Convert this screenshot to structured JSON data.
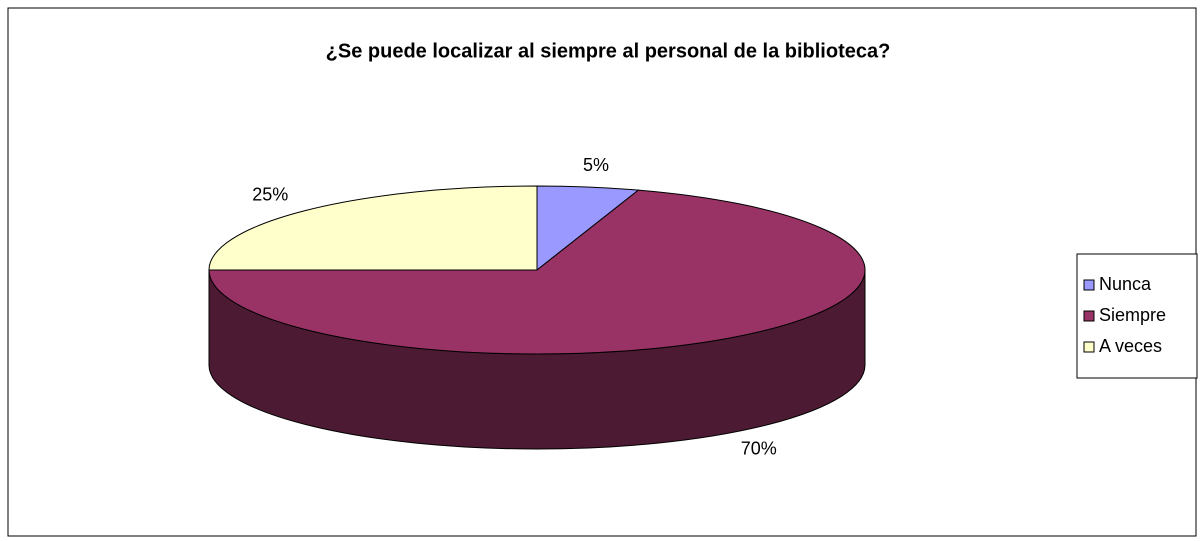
{
  "chart_data": {
    "type": "pie3d",
    "title": "¿Se puede localizar al siempre al personal de la biblioteca?",
    "categories": [
      "Nunca",
      "Siempre",
      "A veces"
    ],
    "values": [
      5,
      70,
      25
    ],
    "value_labels": [
      "5%",
      "70%",
      "25%"
    ],
    "colors": [
      "#9999ff",
      "#993366",
      "#ffffcc"
    ],
    "legend": "right"
  }
}
